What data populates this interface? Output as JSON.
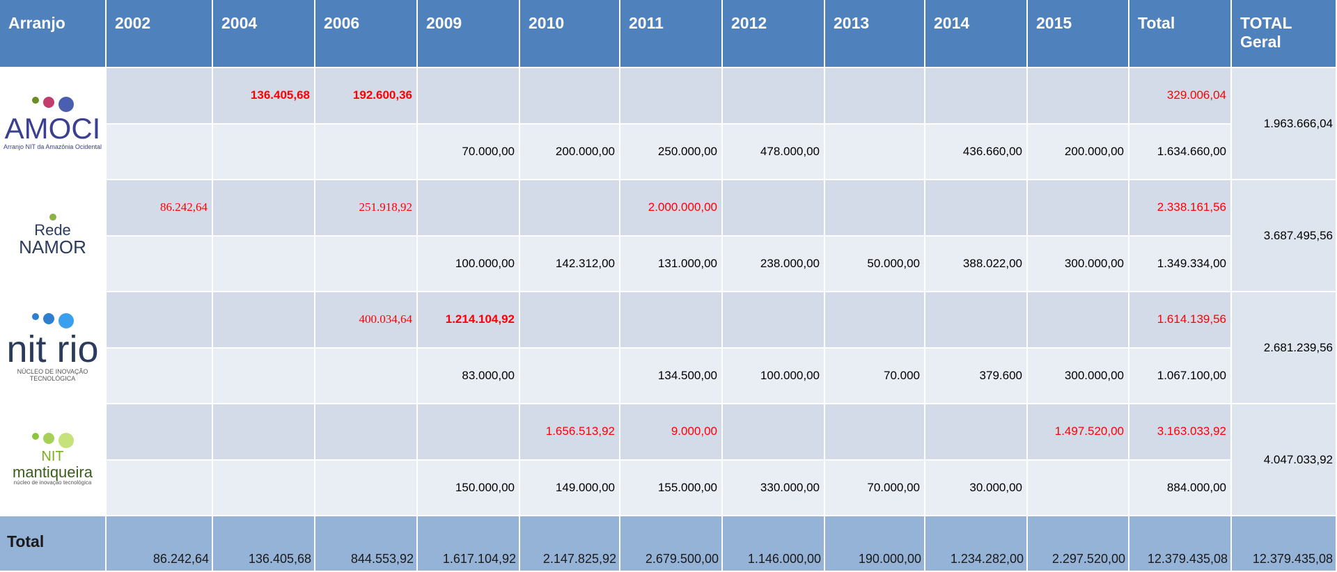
{
  "header": {
    "columns": [
      "Arranjo",
      "2002",
      "2004",
      "2006",
      "2009",
      "2010",
      "2011",
      "2012",
      "2013",
      "2014",
      "2015",
      "Total",
      "TOTAL Geral"
    ]
  },
  "table": {
    "line_colors": [
      "#ff0000",
      "#000000"
    ],
    "rows": [
      {
        "logo": [
          "AMOCI",
          "Arranjo NIT da Amazônia Ocidental"
        ],
        "lines": [
          [
            null,
            "136.405,68",
            "192.600,36",
            null,
            null,
            null,
            null,
            null,
            null,
            null,
            "329.006,04"
          ],
          [
            null,
            null,
            null,
            "70.000,00",
            "200.000,00",
            "250.000,00",
            "478.000,00",
            null,
            "436.660,00",
            "200.000,00",
            "1.634.660,00"
          ]
        ],
        "geral": "1.963.666,04"
      },
      {
        "logo": [
          "Rede",
          "NAMOR"
        ],
        "lines": [
          [
            "86.242,64",
            null,
            "251.918,92",
            null,
            null,
            "2.000.000,00",
            null,
            null,
            null,
            null,
            "2.338.161,56"
          ],
          [
            null,
            null,
            null,
            "100.000,00",
            "142.312,00",
            "131.000,00",
            "238.000,00",
            "50.000,00",
            "388.022,00",
            "300.000,00",
            "1.349.334,00"
          ]
        ],
        "geral": "3.687.495,56"
      },
      {
        "logo": [
          "nit rio",
          "NÚCLEO DE INOVAÇÃO TECNOLÓGICA"
        ],
        "lines": [
          [
            null,
            null,
            "400.034,64",
            "1.214.104,92",
            null,
            null,
            null,
            null,
            null,
            null,
            "1.614.139,56"
          ],
          [
            null,
            null,
            null,
            "83.000,00",
            null,
            "134.500,00",
            "100.000,00",
            "70.000",
            "379.600",
            "300.000,00",
            "1.067.100,00"
          ]
        ],
        "geral": "2.681.239,56"
      },
      {
        "logo": [
          "NIT",
          "mantiqueira",
          "núcleo de inovação tecnológica"
        ],
        "lines": [
          [
            null,
            null,
            null,
            null,
            "1.656.513,92",
            "9.000,00",
            null,
            null,
            null,
            "1.497.520,00",
            "3.163.033,92"
          ],
          [
            null,
            null,
            null,
            "150.000,00",
            "149.000,00",
            "155.000,00",
            "330.000,00",
            "70.000,00",
            "30.000,00",
            null,
            "884.000,00"
          ]
        ],
        "geral": "4.047.033,92"
      }
    ]
  },
  "total": {
    "label": "Total",
    "values": [
      "86.242,64",
      "136.405,68",
      "844.553,92",
      "1.617.104,92",
      "2.147.825,92",
      "2.679.500,00",
      "1.146.000,00",
      "190.000,00",
      "1.234.282,00",
      "2.297.520,00",
      "12.379.435,08",
      "12.379.435,08"
    ]
  }
}
